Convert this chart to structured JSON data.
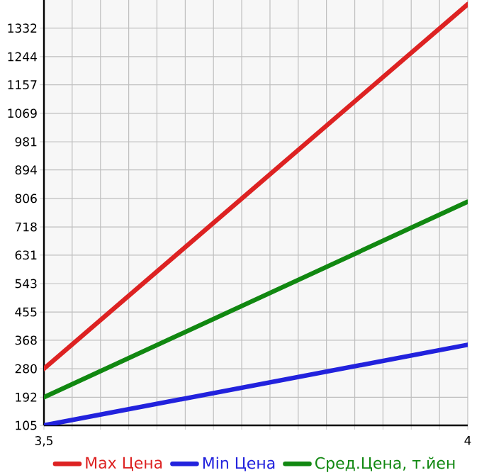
{
  "chart_data": {
    "type": "line",
    "x": [
      3.5,
      4
    ],
    "series": [
      {
        "name": "Max Цена",
        "color": "#dd2222",
        "values": [
          280,
          1406
        ]
      },
      {
        "name": "Min Цена",
        "color": "#2222dd",
        "values": [
          105,
          354
        ]
      },
      {
        "name": "Сред.Цена, т.йен",
        "color": "#118811",
        "values": [
          192,
          796
        ]
      }
    ],
    "xlim": [
      3.5,
      4
    ],
    "xticks": [
      {
        "value": 3.5,
        "label": "3,5"
      },
      {
        "value": 3.5333,
        "label": null
      },
      {
        "value": 3.5667,
        "label": null
      },
      {
        "value": 3.6,
        "label": null
      },
      {
        "value": 3.6333,
        "label": null
      },
      {
        "value": 3.6667,
        "label": null
      },
      {
        "value": 3.7,
        "label": null
      },
      {
        "value": 3.7333,
        "label": null
      },
      {
        "value": 3.7667,
        "label": null
      },
      {
        "value": 3.8,
        "label": null
      },
      {
        "value": 3.8333,
        "label": null
      },
      {
        "value": 3.8667,
        "label": null
      },
      {
        "value": 3.9,
        "label": null
      },
      {
        "value": 3.9333,
        "label": null
      },
      {
        "value": 3.9667,
        "label": null
      },
      4
    ],
    "ylim": [
      105,
      1419
    ],
    "yticks": [
      105,
      192,
      280,
      368,
      455,
      543,
      631,
      718,
      806,
      894,
      981,
      1069,
      1157,
      1244,
      1332
    ],
    "grid": true,
    "legend": "bottom",
    "marker": "none",
    "line_style": "solid"
  }
}
